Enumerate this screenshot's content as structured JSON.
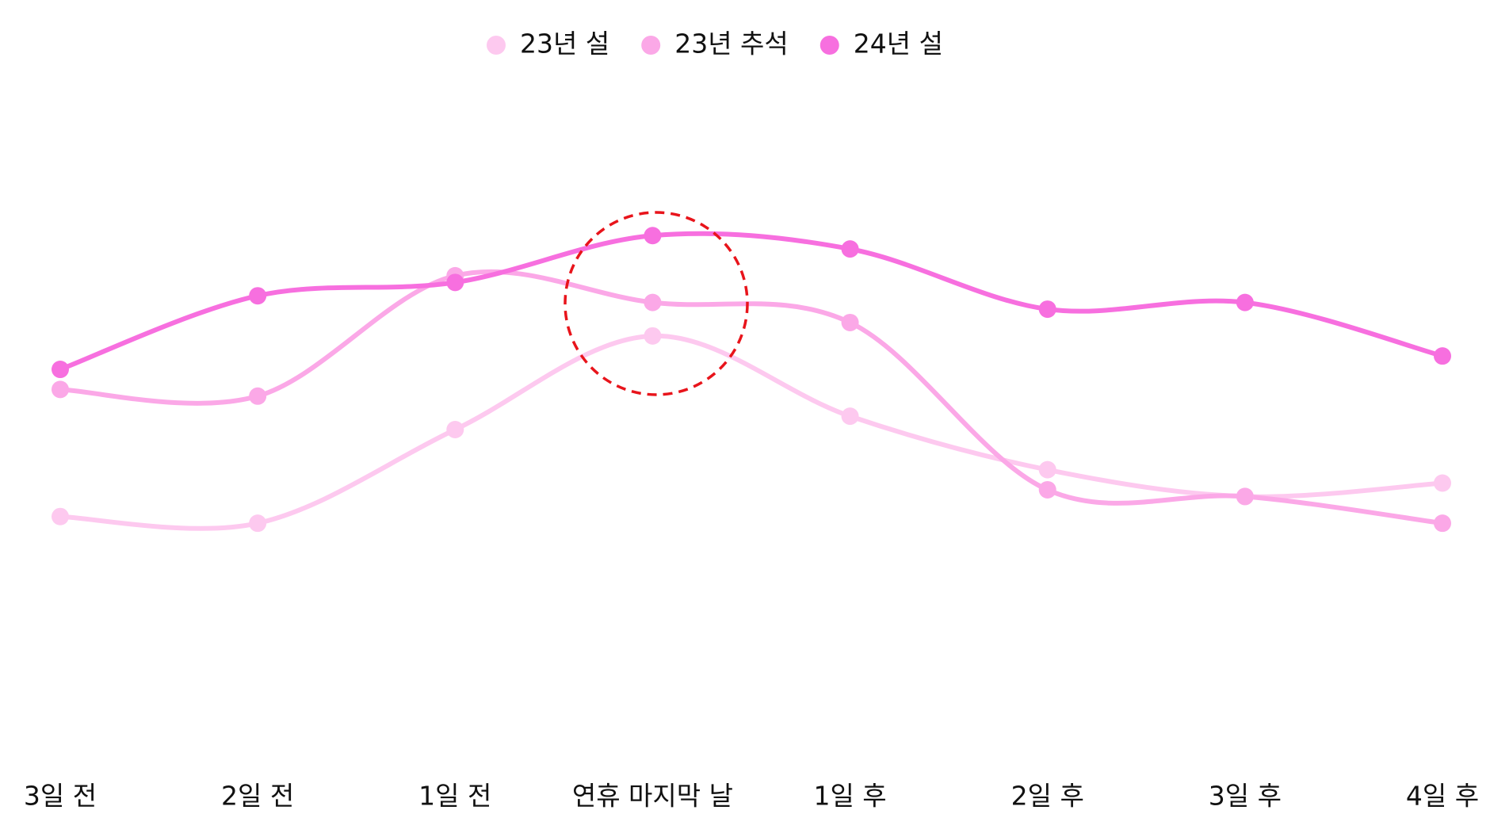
{
  "chart_data": {
    "type": "line",
    "categories": [
      "3일 전",
      "2일 전",
      "1일 전",
      "연휴 마지막 날",
      "1일 후",
      "2일 후",
      "3일 후",
      "4일 후"
    ],
    "series": [
      {
        "name": "23년 설",
        "color": "#fdc9ef",
        "values": [
          37,
          36,
          50,
          64,
          52,
          44,
          40,
          42
        ]
      },
      {
        "name": "23년 추석",
        "color": "#fba8e7",
        "values": [
          56,
          55,
          73,
          69,
          66,
          41,
          40,
          36
        ]
      },
      {
        "name": "24년 설",
        "color": "#f76fdf",
        "values": [
          59,
          70,
          72,
          79,
          77,
          68,
          69,
          61
        ]
      }
    ],
    "ylim": [
      0,
      100
    ],
    "smooth": true
  }
}
